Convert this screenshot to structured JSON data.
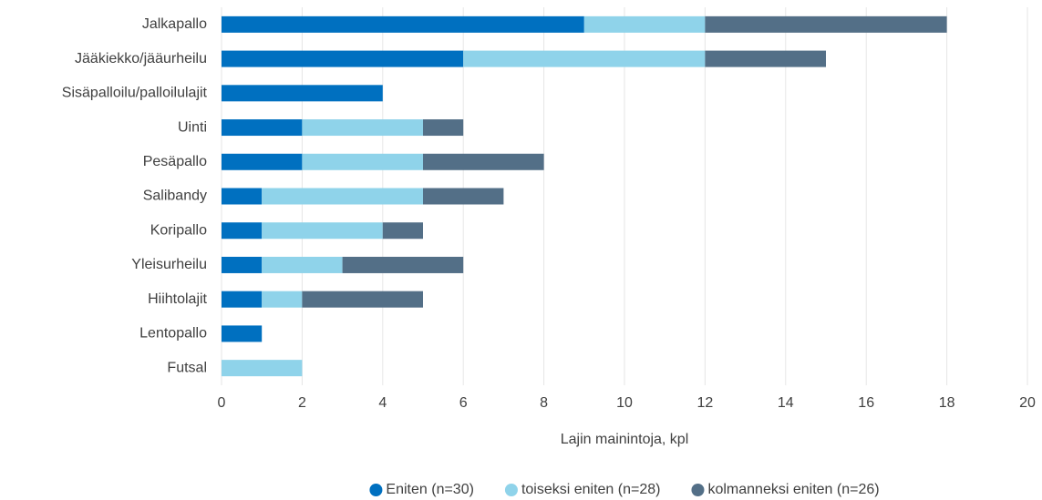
{
  "chart_data": {
    "type": "stacked-barh",
    "categories": [
      "Jalkapallo",
      "Jääkiekko/jääurheilu",
      "Sisäpalloilu/palloilulajit",
      "Uinti",
      "Pesäpallo",
      "Salibandy",
      "Koripallo",
      "Yleisurheilu",
      "Hiihtolajit",
      "Lentopallo",
      "Futsal"
    ],
    "series": [
      {
        "name": "Eniten (n=30)",
        "color": "#0070c0",
        "values": [
          9,
          6,
          4,
          2,
          2,
          1,
          1,
          1,
          1,
          1,
          0
        ]
      },
      {
        "name": "toiseksi eniten (n=28)",
        "color": "#8fd3ea",
        "values": [
          3,
          6,
          0,
          3,
          3,
          4,
          3,
          2,
          1,
          0,
          2
        ]
      },
      {
        "name": "kolmanneksi eniten (n=26)",
        "color": "#536f87",
        "values": [
          6,
          3,
          0,
          1,
          3,
          2,
          1,
          3,
          3,
          0,
          0
        ]
      }
    ],
    "xlabel": "Lajin mainintoja, kpl",
    "xlim": [
      0,
      20
    ],
    "xticks": [
      0,
      2,
      4,
      6,
      8,
      10,
      12,
      14,
      16,
      18,
      20
    ],
    "grid": true,
    "legend": "bottom"
  }
}
